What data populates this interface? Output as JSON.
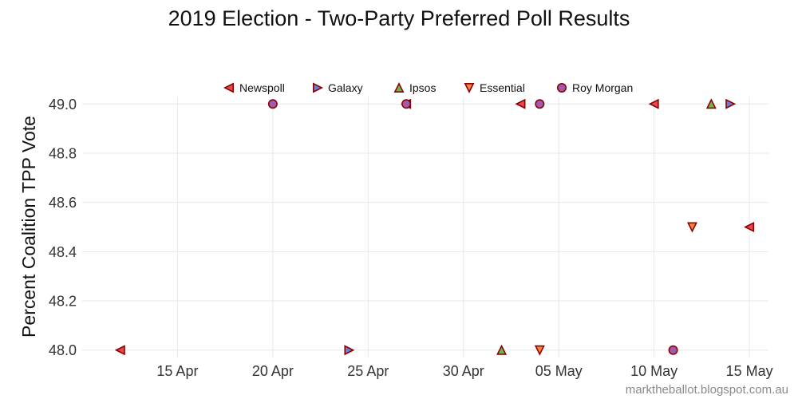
{
  "chart_data": {
    "type": "scatter",
    "title": "2019 Election - Two-Party Preferred Poll Results",
    "xlabel": "",
    "ylabel": "Percent Coalition TPP Vote",
    "x_axis_type": "date",
    "xlim": [
      "2019-04-10",
      "2019-05-16"
    ],
    "ylim": [
      47.97,
      49.03
    ],
    "x_ticks": [
      {
        "date": "2019-04-15",
        "label": "15 Apr"
      },
      {
        "date": "2019-04-20",
        "label": "20 Apr"
      },
      {
        "date": "2019-04-25",
        "label": "25 Apr"
      },
      {
        "date": "2019-04-30",
        "label": "30 Apr"
      },
      {
        "date": "2019-05-05",
        "label": "05 May"
      },
      {
        "date": "2019-05-10",
        "label": "10 May"
      },
      {
        "date": "2019-05-15",
        "label": "15 May"
      }
    ],
    "y_ticks": [
      "48.0",
      "48.2",
      "48.4",
      "48.6",
      "48.8",
      "49.0"
    ],
    "grid": true,
    "legend_position": "top",
    "series": [
      {
        "name": "Newspoll",
        "marker": "triangle-left",
        "color": "#e8484e",
        "points": [
          {
            "x": "2019-04-12",
            "y": 48.0
          },
          {
            "x": "2019-04-27",
            "y": 49.0
          },
          {
            "x": "2019-05-03",
            "y": 49.0
          },
          {
            "x": "2019-05-10",
            "y": 49.0
          },
          {
            "x": "2019-05-15",
            "y": 48.5
          }
        ]
      },
      {
        "name": "Galaxy",
        "marker": "triangle-right",
        "color": "#6a7fd4",
        "points": [
          {
            "x": "2019-04-24",
            "y": 48.0
          },
          {
            "x": "2019-05-14",
            "y": 49.0
          }
        ]
      },
      {
        "name": "Ipsos",
        "marker": "triangle-up",
        "color": "#6cb84c",
        "points": [
          {
            "x": "2019-05-02",
            "y": 48.0
          },
          {
            "x": "2019-05-13",
            "y": 49.0
          }
        ]
      },
      {
        "name": "Essential",
        "marker": "triangle-down",
        "color": "#f5853f",
        "points": [
          {
            "x": "2019-05-04",
            "y": 48.0
          },
          {
            "x": "2019-05-12",
            "y": 48.5
          }
        ]
      },
      {
        "name": "Roy Morgan",
        "marker": "circle",
        "color": "#a05bb0",
        "points": [
          {
            "x": "2019-04-20",
            "y": 49.0
          },
          {
            "x": "2019-04-27",
            "y": 49.0
          },
          {
            "x": "2019-05-04",
            "y": 49.0
          },
          {
            "x": "2019-05-11",
            "y": 48.0
          }
        ]
      }
    ],
    "marker_edge_color": "#8b0000",
    "grid_color": "#e8e8e8"
  },
  "credit": "marktheballot.blogspot.com.au"
}
